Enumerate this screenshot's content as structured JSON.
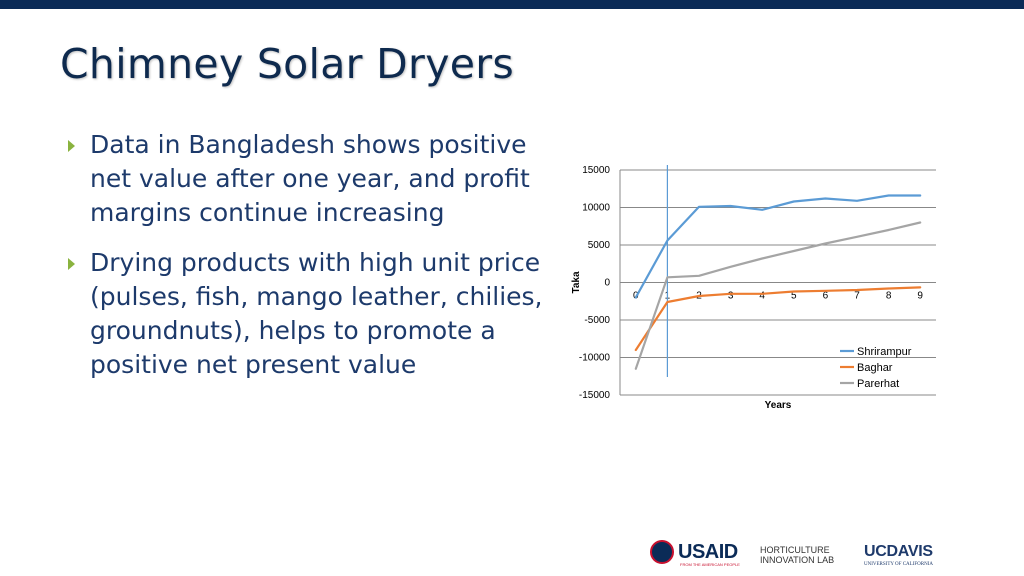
{
  "slide": {
    "title": "Chimney Solar Dryers",
    "bullets": [
      "Data in Bangladesh shows positive net value after one year, and profit margins continue increasing",
      "Drying products with high unit price (pulses, fish, mango leather, chilies, groundnuts), helps to promote a positive net present value"
    ]
  },
  "colors": {
    "top_bar": "#0b2b57",
    "title": "#0e2a4e",
    "bullet_text": "#1d3a6b",
    "bullet_marker": "#8ab33f"
  },
  "chart_data": {
    "type": "line",
    "xlabel": "Years",
    "ylabel": "Taka",
    "x": [
      0,
      1,
      2,
      3,
      4,
      5,
      6,
      7,
      8,
      9
    ],
    "xlim": [
      -0.5,
      9.5
    ],
    "ylim": [
      -15000,
      15000
    ],
    "yticks": [
      15000,
      10000,
      5000,
      0,
      -5000,
      -10000,
      -15000
    ],
    "gridlines": true,
    "reference_line_x": 1,
    "reference_line_color": "#5b9bd5",
    "legend_position": "bottom-right",
    "series": [
      {
        "name": "Shrirampur",
        "color": "#5b9bd5",
        "values": [
          -2000,
          5600,
          10100,
          10200,
          9700,
          10800,
          11200,
          10900,
          11600,
          11600
        ]
      },
      {
        "name": "Baghar",
        "color": "#ed7d31",
        "values": [
          -9000,
          -2600,
          -1800,
          -1500,
          -1500,
          -1200,
          -1100,
          -1000,
          -800,
          -650
        ]
      },
      {
        "name": "Parerhat",
        "color": "#a5a5a5",
        "values": [
          -11500,
          700,
          900,
          2100,
          3200,
          4200,
          5200,
          6100,
          7000,
          8000
        ]
      }
    ]
  },
  "logos": {
    "usaid": "USAID",
    "usaid_tagline": "FROM THE AMERICAN PEOPLE",
    "horticulture": "HORTICULTURE\nINNOVATION LAB",
    "ucdavis": "UCDAVIS",
    "ucdavis_tagline": "UNIVERSITY OF CALIFORNIA"
  }
}
